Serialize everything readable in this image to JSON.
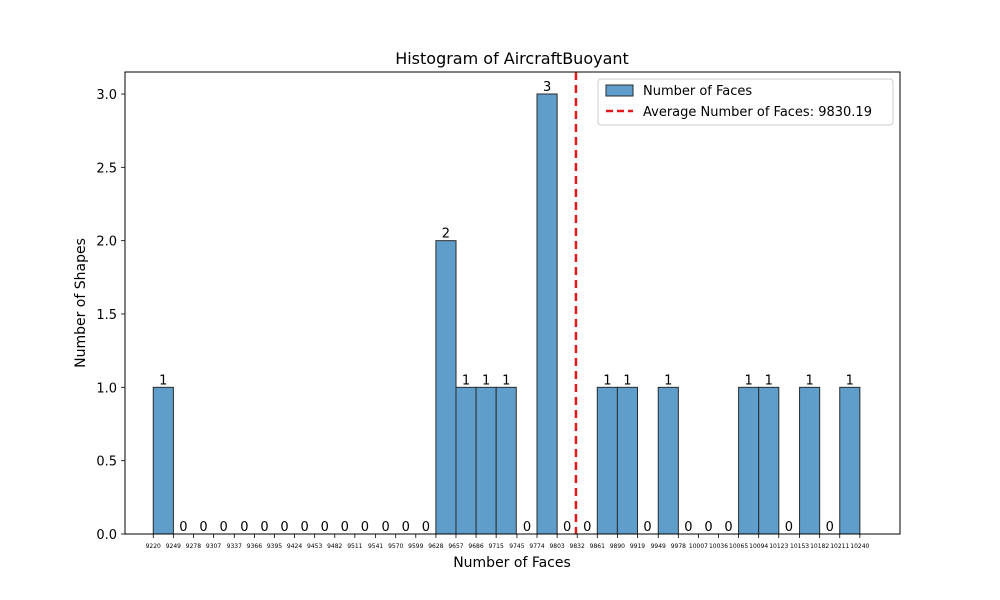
{
  "chart_data": {
    "type": "bar",
    "title": "Histogram of AircraftBuoyant",
    "xlabel": "Number of Faces",
    "ylabel": "Number of Shapes",
    "ylim": [
      0,
      3.15
    ],
    "xlim": [
      9179.2,
      10298.0
    ],
    "bin_width": 29.05,
    "x_ticks": [
      9220,
      9249,
      9278,
      9307,
      9337,
      9366,
      9395,
      9424,
      9453,
      9482,
      9511,
      9541,
      9570,
      9599,
      9628,
      9657,
      9686,
      9715,
      9745,
      9774,
      9803,
      9832,
      9861,
      9890,
      9919,
      9949,
      9978,
      10007,
      10036,
      10065,
      10094,
      10123,
      10153,
      10182,
      10211,
      10240
    ],
    "y_ticks": [
      "0.0",
      "0.5",
      "1.0",
      "1.5",
      "2.0",
      "2.5",
      "3.0"
    ],
    "values": [
      1,
      0,
      0,
      0,
      0,
      0,
      0,
      0,
      0,
      0,
      0,
      0,
      0,
      0,
      2,
      1,
      1,
      1,
      0,
      3,
      0,
      0,
      1,
      1,
      0,
      1,
      0,
      0,
      0,
      1,
      1,
      0,
      1,
      0,
      1
    ],
    "bar_color": "#5f9ecb",
    "bar_edge_color": "#2a2a2a",
    "average": 9830.19,
    "average_color": "#e31a1c",
    "legend": {
      "position": "upper right",
      "bars_label": "Number of Faces",
      "average_label": "Average Number of Faces: 9830.19"
    },
    "grid": false
  }
}
